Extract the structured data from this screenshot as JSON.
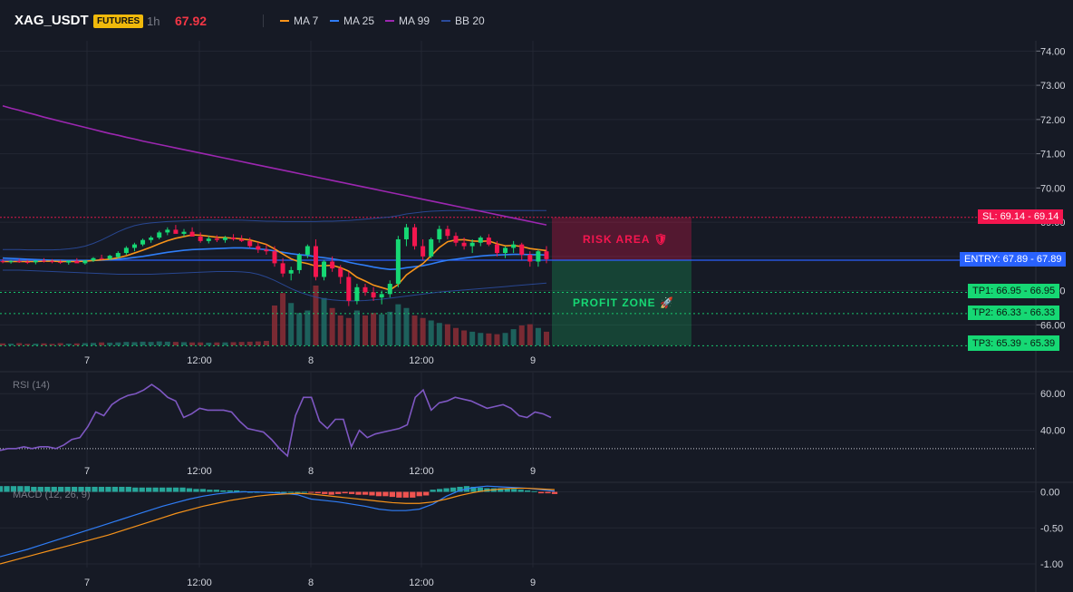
{
  "header": {
    "symbol": "XAG_USDT",
    "badge": "FUTURES",
    "timeframe": "1h",
    "price": "67.92"
  },
  "legend": [
    {
      "label": "MA 7",
      "color": "#f7931a"
    },
    {
      "label": "MA 25",
      "color": "#2f7df6"
    },
    {
      "label": "MA 99",
      "color": "#9c27b0"
    },
    {
      "label": "BB 20",
      "color": "#2a4b9c"
    }
  ],
  "colors": {
    "up": "#26a69a",
    "down": "#ef5350",
    "bg": "#161a25",
    "grid": "#232733",
    "axis": "#d1d4dc"
  },
  "levels": {
    "sl": {
      "label": "SL: 69.14",
      "value": "69.14",
      "y": 69.14
    },
    "entry": {
      "label": "ENTRY: 67.89",
      "value": "67.89",
      "y": 67.89
    },
    "tp1": {
      "label": "TP1: 66.95",
      "value": "66.95",
      "y": 66.95
    },
    "tp2": {
      "label": "TP2: 66.33",
      "value": "66.33",
      "y": 66.33
    },
    "tp3": {
      "label": "TP3: 65.39",
      "value": "65.39",
      "y": 65.39
    }
  },
  "zones": {
    "risk": "RISK AREA 🛡",
    "profit": "PROFIT ZONE 🚀"
  },
  "chart_data": [
    {
      "type": "candlestick",
      "x_tick_labels": [
        "7",
        "12:00",
        "8",
        "12:00",
        "9"
      ],
      "y_ticks": [
        "74.00",
        "73.00",
        "72.00",
        "71.00",
        "70.00",
        "69.00",
        "68.00",
        "67.00",
        "66.00"
      ],
      "ylim": [
        65.4,
        74.3
      ],
      "candles": [
        [
          67.86,
          67.92,
          67.8,
          67.85
        ],
        [
          67.85,
          67.9,
          67.79,
          67.86
        ],
        [
          67.86,
          67.93,
          67.81,
          67.84
        ],
        [
          67.84,
          67.9,
          67.78,
          67.83
        ],
        [
          67.83,
          67.89,
          67.77,
          67.88
        ],
        [
          67.88,
          67.95,
          67.82,
          67.86
        ],
        [
          67.86,
          67.92,
          67.8,
          67.84
        ],
        [
          67.84,
          67.9,
          67.78,
          67.82
        ],
        [
          67.82,
          67.89,
          67.76,
          67.87
        ],
        [
          67.87,
          67.95,
          67.83,
          67.8
        ],
        [
          67.8,
          67.9,
          67.76,
          67.88
        ],
        [
          67.88,
          67.98,
          67.84,
          67.95
        ],
        [
          67.95,
          68.05,
          67.9,
          67.93
        ],
        [
          67.93,
          68.05,
          67.9,
          68.02
        ],
        [
          67.98,
          68.15,
          67.95,
          68.1
        ],
        [
          68.1,
          68.3,
          68.05,
          68.25
        ],
        [
          68.25,
          68.4,
          68.15,
          68.35
        ],
        [
          68.35,
          68.52,
          68.3,
          68.48
        ],
        [
          68.48,
          68.6,
          68.4,
          68.55
        ],
        [
          68.55,
          68.75,
          68.5,
          68.7
        ],
        [
          68.7,
          68.85,
          68.62,
          68.78
        ],
        [
          68.78,
          68.92,
          68.7,
          68.66
        ],
        [
          68.66,
          68.8,
          68.58,
          68.72
        ],
        [
          68.72,
          68.85,
          68.62,
          68.58
        ],
        [
          68.58,
          68.7,
          68.4,
          68.45
        ],
        [
          68.45,
          68.6,
          68.38,
          68.52
        ],
        [
          68.52,
          68.62,
          68.42,
          68.48
        ],
        [
          68.48,
          68.6,
          68.4,
          68.55
        ],
        [
          68.55,
          68.65,
          68.46,
          68.5
        ],
        [
          68.5,
          68.62,
          68.42,
          68.45
        ],
        [
          68.45,
          68.55,
          68.25,
          68.3
        ],
        [
          68.3,
          68.42,
          68.1,
          68.2
        ],
        [
          68.2,
          68.35,
          68.05,
          68.15
        ],
        [
          68.15,
          68.3,
          67.7,
          67.8
        ],
        [
          67.8,
          67.95,
          67.4,
          67.5
        ],
        [
          67.5,
          67.7,
          67.3,
          67.6
        ],
        [
          67.6,
          68.1,
          67.5,
          68.05
        ],
        [
          68.05,
          68.35,
          67.95,
          68.3
        ],
        [
          68.3,
          68.5,
          67.3,
          67.4
        ],
        [
          67.4,
          67.9,
          67.3,
          67.85
        ],
        [
          67.85,
          68.0,
          67.55,
          67.65
        ],
        [
          67.65,
          67.75,
          67.2,
          67.4
        ],
        [
          67.4,
          67.55,
          66.55,
          66.7
        ],
        [
          66.7,
          67.2,
          66.6,
          67.1
        ],
        [
          67.1,
          67.2,
          66.85,
          66.95
        ],
        [
          66.95,
          67.1,
          66.7,
          66.8
        ],
        [
          66.8,
          67.0,
          66.6,
          66.9
        ],
        [
          66.9,
          67.3,
          66.8,
          67.2
        ],
        [
          67.2,
          68.6,
          67.1,
          68.5
        ],
        [
          68.5,
          68.95,
          68.3,
          68.85
        ],
        [
          68.85,
          68.95,
          68.2,
          68.3
        ],
        [
          68.3,
          68.5,
          67.9,
          68.0
        ],
        [
          68.0,
          68.55,
          67.95,
          68.5
        ],
        [
          68.5,
          68.9,
          68.4,
          68.8
        ],
        [
          68.8,
          68.9,
          68.5,
          68.6
        ],
        [
          68.6,
          68.7,
          68.3,
          68.4
        ],
        [
          68.4,
          68.55,
          68.2,
          68.3
        ],
        [
          68.3,
          68.5,
          68.1,
          68.4
        ],
        [
          68.4,
          68.6,
          68.3,
          68.55
        ],
        [
          68.55,
          68.65,
          68.3,
          68.35
        ],
        [
          68.35,
          68.45,
          68.0,
          68.1
        ],
        [
          68.1,
          68.3,
          67.95,
          68.25
        ],
        [
          68.25,
          68.45,
          68.1,
          68.35
        ],
        [
          68.35,
          68.4,
          67.9,
          68.05
        ],
        [
          68.05,
          68.15,
          67.7,
          67.85
        ],
        [
          67.85,
          68.2,
          67.7,
          68.15
        ],
        [
          68.15,
          68.3,
          67.8,
          67.92
        ]
      ],
      "volumes": [
        8,
        7,
        9,
        6,
        7,
        8,
        6,
        9,
        7,
        8,
        9,
        10,
        12,
        11,
        12,
        14,
        13,
        15,
        14,
        16,
        15,
        14,
        13,
        12,
        12,
        11,
        12,
        12,
        13,
        14,
        15,
        16,
        18,
        160,
        210,
        170,
        130,
        140,
        240,
        190,
        150,
        120,
        110,
        140,
        120,
        130,
        125,
        135,
        165,
        150,
        120,
        110,
        100,
        90,
        85,
        70,
        60,
        55,
        50,
        48,
        45,
        50,
        65,
        80,
        85,
        70,
        55
      ],
      "ma7": [
        67.85,
        67.85,
        67.85,
        67.85,
        67.85,
        67.86,
        67.86,
        67.85,
        67.85,
        67.85,
        67.86,
        67.88,
        67.9,
        67.92,
        67.96,
        68.02,
        68.1,
        68.18,
        68.27,
        68.37,
        68.46,
        68.53,
        68.58,
        68.63,
        68.62,
        68.59,
        68.56,
        68.55,
        68.53,
        68.51,
        68.48,
        68.42,
        68.35,
        68.22,
        68.07,
        67.93,
        67.84,
        67.79,
        67.72,
        67.73,
        67.74,
        67.67,
        67.57,
        67.39,
        67.28,
        67.16,
        67.09,
        67.02,
        67.18,
        67.46,
        67.63,
        67.79,
        68.02,
        68.26,
        68.43,
        68.48,
        68.49,
        68.45,
        68.44,
        68.45,
        68.37,
        68.31,
        68.32,
        68.29,
        68.23,
        68.2,
        68.17
      ],
      "ma25": [
        67.95,
        67.94,
        67.93,
        67.92,
        67.91,
        67.9,
        67.89,
        67.89,
        67.88,
        67.88,
        67.88,
        67.88,
        67.89,
        67.9,
        67.92,
        67.94,
        67.97,
        68.0,
        68.04,
        68.08,
        68.12,
        68.15,
        68.18,
        68.2,
        68.21,
        68.22,
        68.23,
        68.24,
        68.25,
        68.25,
        68.24,
        68.22,
        68.2,
        68.16,
        68.12,
        68.08,
        68.05,
        68.03,
        67.99,
        67.96,
        67.93,
        67.89,
        67.83,
        67.78,
        67.74,
        67.69,
        67.65,
        67.62,
        67.63,
        67.67,
        67.7,
        67.73,
        67.78,
        67.84,
        67.89,
        67.92,
        67.95,
        67.98,
        68.01,
        68.03,
        68.04,
        68.05,
        68.06,
        68.06,
        68.05,
        68.05,
        68.04
      ],
      "ma99": [
        72.4,
        72.33,
        72.27,
        72.2,
        72.14,
        72.07,
        72.01,
        71.95,
        71.89,
        71.83,
        71.77,
        71.71,
        71.65,
        71.59,
        71.54,
        71.48,
        71.43,
        71.37,
        71.32,
        71.27,
        71.22,
        71.17,
        71.12,
        71.07,
        71.02,
        70.97,
        70.92,
        70.87,
        70.82,
        70.77,
        70.72,
        70.67,
        70.62,
        70.57,
        70.52,
        70.47,
        70.42,
        70.37,
        70.32,
        70.27,
        70.22,
        70.17,
        70.12,
        70.07,
        70.02,
        69.97,
        69.92,
        69.87,
        69.82,
        69.77,
        69.72,
        69.67,
        69.62,
        69.57,
        69.52,
        69.47,
        69.42,
        69.37,
        69.32,
        69.27,
        69.22,
        69.17,
        69.12,
        69.07,
        69.02,
        68.97,
        68.92
      ],
      "bb_upper": [
        68.2,
        68.2,
        68.2,
        68.19,
        68.19,
        68.19,
        68.19,
        68.2,
        68.22,
        68.25,
        68.3,
        68.38,
        68.48,
        68.6,
        68.72,
        68.82,
        68.9,
        68.95,
        68.98,
        69.0,
        69.02,
        69.03,
        69.04,
        69.05,
        69.06,
        69.06,
        69.06,
        69.06,
        69.06,
        69.06,
        69.05,
        69.04,
        69.03,
        69.03,
        69.02,
        69.02,
        69.02,
        69.02,
        69.02,
        69.03,
        69.03,
        69.04,
        69.05,
        69.07,
        69.09,
        69.11,
        69.13,
        69.15,
        69.19,
        69.24,
        69.27,
        69.3,
        69.32,
        69.33,
        69.34,
        69.34,
        69.34,
        69.34,
        69.34,
        69.34,
        69.34,
        69.34,
        69.34,
        69.34,
        69.34,
        69.34,
        69.34
      ],
      "bb_lower": [
        67.6,
        67.6,
        67.6,
        67.59,
        67.58,
        67.57,
        67.56,
        67.55,
        67.54,
        67.53,
        67.52,
        67.51,
        67.5,
        67.49,
        67.48,
        67.48,
        67.48,
        67.48,
        67.48,
        67.49,
        67.5,
        67.51,
        67.52,
        67.53,
        67.54,
        67.55,
        67.56,
        67.56,
        67.56,
        67.55,
        67.53,
        67.48,
        67.4,
        67.3,
        67.18,
        67.06,
        66.96,
        66.88,
        66.81,
        66.76,
        66.73,
        66.71,
        66.7,
        66.7,
        66.71,
        66.73,
        66.75,
        66.78,
        66.81,
        66.84,
        66.87,
        66.9,
        66.93,
        66.96,
        66.98,
        67.0,
        67.02,
        67.04,
        67.06,
        67.08,
        67.1,
        67.12,
        67.14,
        67.16,
        67.18,
        67.2,
        67.22
      ]
    },
    {
      "type": "line",
      "title": "RSI (14)",
      "y_ticks": [
        "60.00",
        "40.00"
      ],
      "ylim": [
        22,
        71
      ],
      "reference": 30,
      "values": [
        29,
        30,
        30,
        31,
        30,
        31,
        31,
        30,
        32,
        35,
        36,
        42,
        50,
        48,
        54,
        57,
        59,
        60,
        62,
        65,
        62,
        58,
        56,
        47,
        49,
        52,
        51,
        51,
        51,
        50,
        45,
        41,
        40,
        39,
        35,
        30,
        26,
        48,
        58,
        58,
        45,
        41,
        46,
        46,
        31,
        40,
        36,
        38,
        39,
        40,
        41,
        43,
        58,
        62,
        51,
        55,
        56,
        58,
        57,
        56,
        54,
        52,
        53,
        54,
        52,
        48,
        47,
        50,
        49,
        47
      ]
    },
    {
      "type": "bar",
      "title": "MACD (12, 26, 9)",
      "y_ticks": [
        "0.00",
        "-0.50",
        "-1.00"
      ],
      "ylim": [
        -1.05,
        0.12
      ],
      "histogram": [
        0.08,
        0.08,
        0.08,
        0.08,
        0.08,
        0.07,
        0.07,
        0.07,
        0.07,
        0.07,
        0.07,
        0.07,
        0.07,
        0.07,
        0.07,
        0.07,
        0.07,
        0.07,
        0.07,
        0.07,
        0.06,
        0.06,
        0.06,
        0.06,
        0.06,
        0.06,
        0.06,
        0.06,
        0.05,
        0.04,
        0.04,
        0.03,
        0.03,
        0.02,
        0.02,
        0.02,
        0.01,
        0.0,
        0.0,
        0.0,
        0.0,
        0.0,
        0.0,
        0.0,
        0.0,
        0.0,
        -0.01,
        -0.02,
        -0.03,
        -0.04,
        -0.03,
        -0.02,
        -0.03,
        -0.04,
        -0.04,
        -0.05,
        -0.06,
        -0.06,
        -0.07,
        -0.08,
        -0.08,
        -0.08,
        -0.06,
        -0.05,
        0.03,
        0.04,
        0.05,
        0.06,
        0.07,
        0.08,
        0.07,
        0.06,
        0.05,
        0.05,
        0.05,
        0.04,
        0.04,
        0.03,
        0.02,
        0.01,
        -0.02,
        -0.02,
        -0.03
      ],
      "macd": [
        -0.9,
        -0.85,
        -0.8,
        -0.74,
        -0.68,
        -0.62,
        -0.56,
        -0.5,
        -0.44,
        -0.38,
        -0.32,
        -0.26,
        -0.2,
        -0.15,
        -0.1,
        -0.06,
        -0.03,
        -0.01,
        0.0,
        0.0,
        -0.01,
        -0.02,
        -0.04,
        -0.1,
        -0.12,
        -0.14,
        -0.17,
        -0.2,
        -0.24,
        -0.26,
        -0.26,
        -0.24,
        -0.17,
        -0.06,
        0.02,
        0.06,
        0.08,
        0.07,
        0.06,
        0.05,
        0.03,
        0.01
      ],
      "signal": [
        -1.0,
        -0.95,
        -0.9,
        -0.85,
        -0.8,
        -0.75,
        -0.7,
        -0.65,
        -0.6,
        -0.54,
        -0.48,
        -0.42,
        -0.36,
        -0.3,
        -0.25,
        -0.2,
        -0.16,
        -0.12,
        -0.09,
        -0.06,
        -0.04,
        -0.03,
        -0.02,
        -0.03,
        -0.05,
        -0.07,
        -0.09,
        -0.11,
        -0.13,
        -0.15,
        -0.16,
        -0.16,
        -0.14,
        -0.1,
        -0.05,
        -0.01,
        0.02,
        0.04,
        0.05,
        0.05,
        0.04,
        0.03
      ]
    }
  ]
}
